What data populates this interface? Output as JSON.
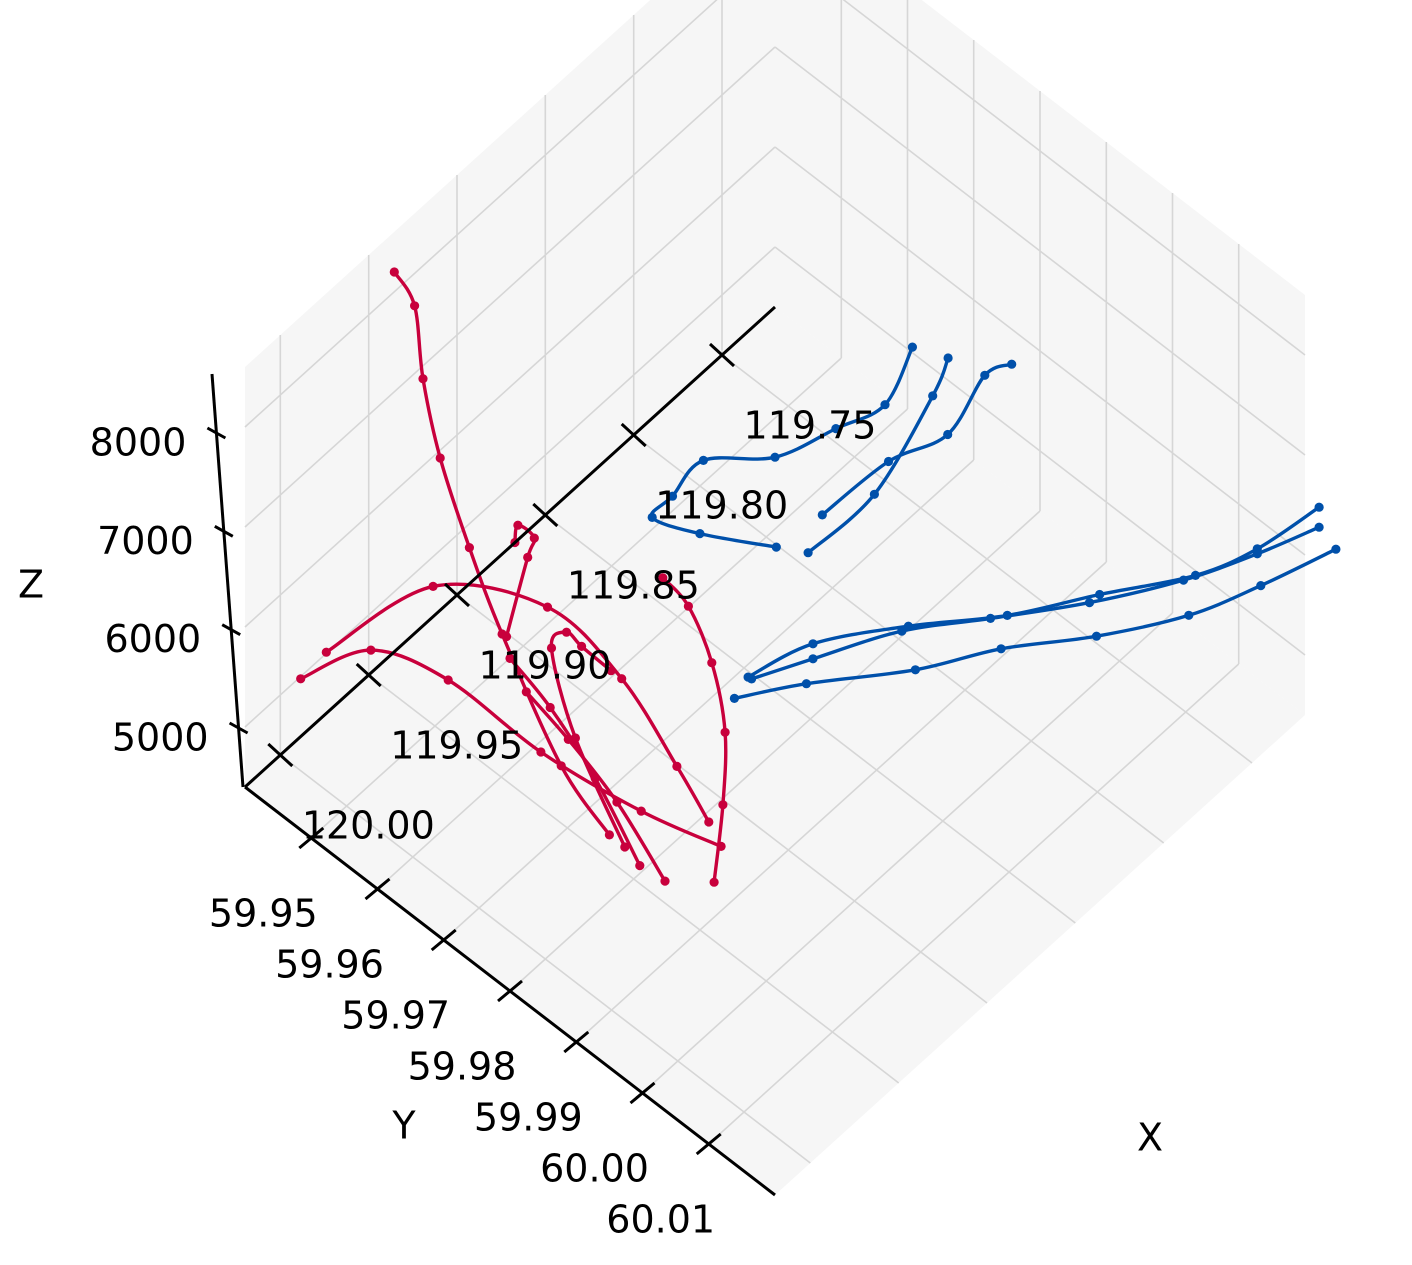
{
  "chart_data": {
    "type": "line3d",
    "title": "",
    "xlabel": "X",
    "ylabel": "Y",
    "zlabel": "Z",
    "xlim": [
      119.72,
      120.02
    ],
    "ylim": [
      59.94,
      60.02
    ],
    "zlim": [
      4400,
      8600
    ],
    "x_ticks": [
      "119.75",
      "119.80",
      "119.85",
      "119.90",
      "119.95",
      "120.00"
    ],
    "y_ticks": [
      "59.95",
      "59.96",
      "59.97",
      "59.98",
      "59.99",
      "60.00",
      "60.01"
    ],
    "z_ticks": [
      "5000",
      "6000",
      "7000",
      "8000"
    ],
    "grid": true,
    "colors": {
      "group_a": "#c8003c",
      "group_b": "#0050aa",
      "pane": "#f6f6f6"
    },
    "series": [
      {
        "group": "group_a",
        "points": [
          [
            120.004,
            59.948,
            5900
          ],
          [
            119.981,
            59.958,
            6700
          ],
          [
            119.965,
            59.971,
            6900
          ],
          [
            119.953,
            59.979,
            6400
          ],
          [
            119.948,
            59.986,
            5800
          ],
          [
            119.945,
            59.99,
            5400
          ]
        ]
      },
      {
        "group": "group_a",
        "points": [
          [
            119.962,
            59.964,
            6200
          ],
          [
            119.95,
            59.964,
            6800
          ],
          [
            119.935,
            59.961,
            6600
          ],
          [
            119.918,
            59.954,
            6100
          ],
          [
            119.901,
            59.949,
            5400
          ]
        ]
      },
      {
        "group": "group_a",
        "points": [
          [
            119.996,
            59.942,
            5200
          ],
          [
            119.99,
            59.951,
            5850
          ],
          [
            119.98,
            59.96,
            5850
          ],
          [
            119.965,
            59.97,
            5400
          ],
          [
            119.942,
            59.979,
            4900
          ],
          [
            119.923,
            59.986,
            4600
          ]
        ]
      },
      {
        "group": "group_a",
        "points": [
          [
            119.955,
            59.98,
            4800
          ],
          [
            119.953,
            59.972,
            5450
          ],
          [
            119.944,
            59.966,
            5900
          ],
          [
            119.928,
            59.964,
            5700
          ],
          [
            119.912,
            59.962,
            5200
          ],
          [
            119.899,
            59.963,
            4800
          ]
        ]
      },
      {
        "group": "group_a",
        "points": [
          [
            119.96,
            59.979,
            4950
          ],
          [
            119.961,
            59.972,
            5300
          ],
          [
            119.942,
            59.958,
            5600
          ],
          [
            119.923,
            59.948,
            5650
          ],
          [
            119.902,
            59.938,
            5700
          ],
          [
            119.878,
            59.929,
            5650
          ],
          [
            119.864,
            59.924,
            5900
          ],
          [
            119.868,
            59.922,
            6200
          ]
        ]
      },
      {
        "group": "group_a",
        "points": [
          [
            119.942,
            59.99,
            4750
          ],
          [
            119.922,
            59.986,
            5000
          ],
          [
            119.902,
            59.981,
            5150
          ],
          [
            119.887,
            59.975,
            5300
          ],
          [
            119.874,
            59.968,
            5300
          ],
          [
            119.866,
            59.962,
            5150
          ]
        ]
      },
      {
        "group": "group_a",
        "points": [
          [
            119.954,
            59.982,
            4700
          ],
          [
            119.953,
            59.975,
            5200
          ],
          [
            119.956,
            59.969,
            5650
          ],
          [
            119.96,
            59.964,
            5950
          ]
        ]
      },
      {
        "group": "group_a",
        "points": [
          [
            119.951,
            59.985,
            4650
          ],
          [
            119.952,
            59.978,
            5100
          ],
          [
            119.957,
            59.972,
            5500
          ],
          [
            119.962,
            59.967,
            5800
          ]
        ]
      },
      {
        "group": "group_b",
        "points": [
          [
            119.796,
            59.996,
            7900
          ],
          [
            119.8,
            59.993,
            7700
          ],
          [
            119.806,
            59.989,
            7000
          ],
          [
            119.817,
            59.983,
            6600
          ],
          [
            119.832,
            59.977,
            6000
          ]
        ]
      },
      {
        "group": "group_b",
        "points": [
          [
            119.811,
            59.985,
            7750
          ],
          [
            119.819,
            59.983,
            7200
          ],
          [
            119.828,
            59.978,
            6850
          ],
          [
            119.84,
            59.972,
            6450
          ],
          [
            119.858,
            59.966,
            6400
          ],
          [
            119.868,
            59.964,
            6100
          ],
          [
            119.872,
            59.962,
            5850
          ],
          [
            119.86,
            59.966,
            5700
          ],
          [
            119.843,
            59.973,
            5650
          ]
        ]
      },
      {
        "group": "group_b",
        "points": [
          [
            119.802,
            59.988,
            7650
          ],
          [
            119.807,
            59.987,
            7300
          ],
          [
            119.825,
            59.983,
            6400
          ],
          [
            119.84,
            59.977,
            5750
          ]
        ]
      },
      {
        "group": "group_b",
        "points": [
          [
            119.71,
            60.022,
            6000
          ],
          [
            119.73,
            60.016,
            5650
          ],
          [
            119.752,
            60.011,
            5450
          ],
          [
            119.778,
            60.004,
            5300
          ],
          [
            119.802,
            59.996,
            5150
          ],
          [
            119.828,
            59.99,
            5050
          ],
          [
            119.856,
            59.981,
            4900
          ],
          [
            119.878,
            59.976,
            4850
          ]
        ]
      },
      {
        "group": "group_b",
        "points": [
          [
            119.712,
            60.02,
            6150
          ],
          [
            119.732,
            60.016,
            6000
          ],
          [
            119.755,
            60.011,
            5850
          ],
          [
            119.782,
            60.004,
            5700
          ],
          [
            119.808,
            59.996,
            5550
          ],
          [
            119.832,
            59.989,
            5450
          ],
          [
            119.856,
            59.982,
            5200
          ],
          [
            119.872,
            59.977,
            5000
          ]
        ]
      },
      {
        "group": "group_b",
        "points": [
          [
            119.712,
            60.02,
            6350
          ],
          [
            119.732,
            60.016,
            6050
          ],
          [
            119.752,
            60.012,
            5900
          ],
          [
            119.78,
            60.005,
            5800
          ],
          [
            119.806,
            59.998,
            5650
          ],
          [
            119.832,
            59.99,
            5550
          ],
          [
            119.856,
            59.982,
            5350
          ],
          [
            119.874,
            59.977,
            5050
          ]
        ]
      }
    ]
  }
}
